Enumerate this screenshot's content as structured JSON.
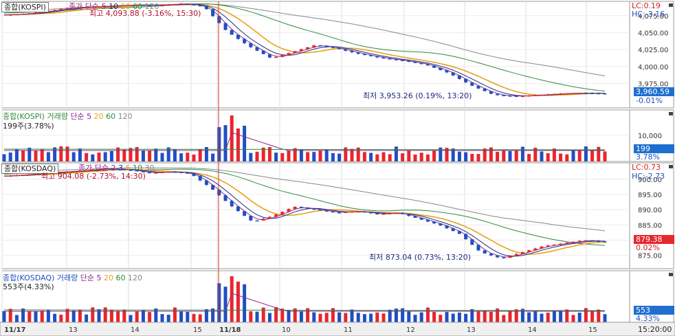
{
  "colors": {
    "up": "#e8262c",
    "down": "#1f4fc2",
    "ma5": "#8b2a8b",
    "ma10": "#1c2a80",
    "ma20": "#e8a21a",
    "ma60": "#2c8a3a",
    "ma120": "#888888",
    "cursor": "#d93030",
    "badge_red": "#e8262c",
    "badge_blue": "#1f6fd0"
  },
  "panels": {
    "kospi_price": {
      "title": "종합(KOSPI)",
      "ma_label": "종가 단순",
      "ma_periods": [
        "5",
        "10",
        "20",
        "60",
        "120"
      ],
      "lc": "LC:0.19",
      "hc": "HC:-3.16",
      "high_note": "최고 4,093.88 (-3.16%, 15:30)",
      "low_note": "최저 3,953.26 (0.19%, 13:20)",
      "current_value": "3,960.59",
      "current_change": "-0.01%",
      "y_ticks": [
        "4,075.00",
        "4,050.00",
        "4,025.00",
        "4,000.00",
        "3,975.00"
      ]
    },
    "kospi_volume": {
      "title": "종합(KOSPI) 거래량",
      "ma_label": "단순",
      "ma_periods": [
        "5",
        "20",
        "60",
        "120"
      ],
      "sub_label": "199주(3.78%)",
      "y_ticks": [
        "10,000"
      ],
      "current_value": "199",
      "current_change": "3.78%"
    },
    "kosdaq_price": {
      "title": "종합(KOSDAQ)",
      "ma_label": "종가 단순",
      "ma_periods": [
        "2",
        "3",
        "5",
        "10",
        "30"
      ],
      "lc": "LC:0.73",
      "hc": "HC:-2.73",
      "high_note": "최고 904.08 (-2.73%, 14:30)",
      "low_note": "최저 873.04 (0.73%, 13:20)",
      "current_value": "879.38",
      "current_change": "0.02%",
      "y_ticks": [
        "900.00",
        "895.00",
        "890.00",
        "885.00",
        "880.00",
        "875.00"
      ]
    },
    "kosdaq_volume": {
      "title": "종합(KOSDAQ) 거래량",
      "ma_label": "단순",
      "ma_periods": [
        "5",
        "20",
        "60",
        "120"
      ],
      "sub_label": "553주(4.33%)",
      "current_value": "553",
      "current_change": "4.33%"
    }
  },
  "x_axis": {
    "labels": [
      "11/17",
      "13",
      "14",
      "15",
      "11/18",
      "10",
      "11",
      "12",
      "13",
      "14",
      "15"
    ],
    "time": "15:20:00"
  },
  "chart_data": [
    {
      "type": "candlestick",
      "title": "종합(KOSPI)",
      "ylim": [
        3945,
        4090
      ],
      "x": [
        "11/17",
        "13",
        "14",
        "15",
        "11/18",
        "10",
        "11",
        "12",
        "13",
        "14",
        "15"
      ],
      "close_path": [
        4076,
        4078,
        4082,
        4087,
        4088,
        4090,
        4091,
        4090,
        4093,
        4088,
        4052,
        4030,
        4012,
        4022,
        4032,
        4026,
        4018,
        4012,
        4008,
        4002,
        3990,
        3972,
        3958,
        3956,
        3958,
        3960,
        3961,
        3960
      ]
    },
    {
      "type": "bar",
      "title": "종합(KOSPI) 거래량",
      "y_tick": 10000,
      "last_value": 199
    },
    {
      "type": "candlestick",
      "title": "종합(KOSDAQ)",
      "ylim": [
        872,
        904
      ],
      "x": [
        "11/17",
        "13",
        "14",
        "15",
        "11/18",
        "10",
        "11",
        "12",
        "13",
        "14",
        "15"
      ],
      "close_path": [
        901,
        901.5,
        902,
        902.5,
        903,
        903.5,
        903,
        902,
        902.5,
        901.8,
        897,
        891,
        886,
        888,
        891,
        890,
        889,
        889.5,
        888.5,
        889,
        887,
        885,
        882,
        876,
        874,
        876,
        878,
        879,
        880,
        879.4
      ]
    },
    {
      "type": "bar",
      "title": "종합(KOSDAQ) 거래량",
      "last_value": 553
    }
  ]
}
